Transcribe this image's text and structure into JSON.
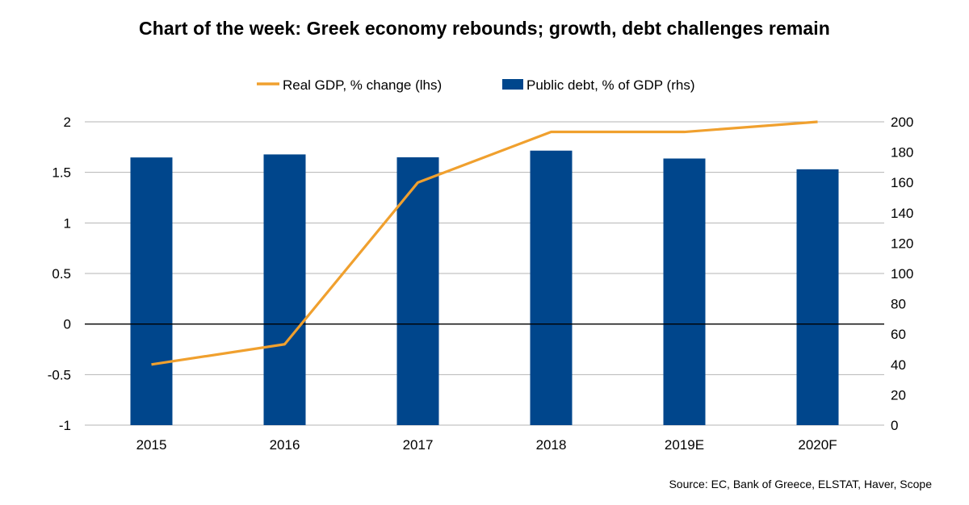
{
  "title": "Chart of the week: Greek economy rebounds; growth, debt challenges remain",
  "source": "Source: EC, Bank of Greece, ELSTAT, Haver, Scope",
  "chart_data": {
    "type": "bar+line",
    "categories": [
      "2015",
      "2016",
      "2017",
      "2018",
      "2019E",
      "2020F"
    ],
    "series": [
      {
        "name": "Real GDP, % change (lhs)",
        "type": "line",
        "axis": "left",
        "color": "#F0A02E",
        "values": [
          -0.4,
          -0.2,
          1.4,
          1.9,
          1.9,
          2.0
        ]
      },
      {
        "name": "Public debt, % of GDP (rhs)",
        "type": "bar",
        "axis": "right",
        "color": "#00468C",
        "values": [
          176.5,
          178.5,
          176.6,
          181.0,
          175.8,
          168.7
        ]
      }
    ],
    "left_axis": {
      "min": -1,
      "max": 2,
      "ticks": [
        "-1",
        "-0.5",
        "0",
        "0.5",
        "1",
        "1.5",
        "2"
      ]
    },
    "right_axis": {
      "min": 0,
      "max": 200,
      "ticks": [
        "0",
        "20",
        "40",
        "60",
        "80",
        "100",
        "120",
        "140",
        "160",
        "180",
        "200"
      ]
    },
    "legend_position": "top-center",
    "gridlines": true
  }
}
